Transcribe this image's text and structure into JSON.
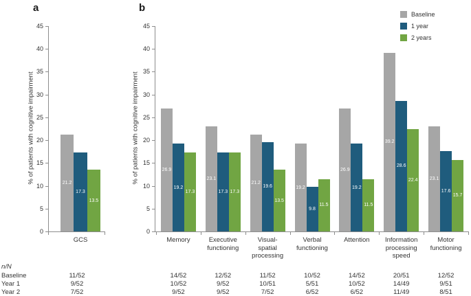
{
  "figure": {
    "panel_a_label": "a",
    "panel_b_label": "b",
    "y_axis_label": "% of patients with cognitive impairment"
  },
  "colors": {
    "baseline": "#a6a6a6",
    "year1": "#1f5c7d",
    "year2": "#71a543",
    "axis": "#8c8c8c",
    "bar_value_text": "#ffffff"
  },
  "legend": {
    "items": [
      {
        "label": "Baseline",
        "color": "#a6a6a6"
      },
      {
        "label": "1 year",
        "color": "#1f5c7d"
      },
      {
        "label": "2 years",
        "color": "#71a543"
      }
    ]
  },
  "chart_data": [
    {
      "panel": "a",
      "type": "bar",
      "title": "",
      "xlabel": "",
      "ylabel": "% of patients with cognitive impairment",
      "ylim": [
        0,
        45
      ],
      "ytick_step": 5,
      "grid": false,
      "categories": [
        "GCS"
      ],
      "series": [
        {
          "name": "Baseline",
          "color": "#a6a6a6",
          "values": [
            21.2
          ]
        },
        {
          "name": "1 year",
          "color": "#1f5c7d",
          "values": [
            17.3
          ]
        },
        {
          "name": "2 years",
          "color": "#71a543",
          "values": [
            13.5
          ]
        }
      ],
      "value_labels_inside_bars": true
    },
    {
      "panel": "b",
      "type": "bar",
      "title": "",
      "xlabel": "",
      "ylabel": "% of patients with cognitive impairment",
      "ylim": [
        0,
        45
      ],
      "ytick_step": 5,
      "grid": false,
      "legend_position": "top-right",
      "categories": [
        "Memory",
        "Executive\nfunctioning",
        "Visual-\nspatial\nprocessing",
        "Verbal\nfunctioning",
        "Attention",
        "Information\nprocessing\nspeed",
        "Motor\nfunctioning"
      ],
      "series": [
        {
          "name": "Baseline",
          "color": "#a6a6a6",
          "values": [
            26.9,
            23.1,
            21.2,
            19.2,
            26.9,
            39.2,
            23.1
          ]
        },
        {
          "name": "1 year",
          "color": "#1f5c7d",
          "values": [
            19.2,
            17.3,
            19.6,
            9.8,
            19.2,
            28.6,
            17.6
          ]
        },
        {
          "name": "2 years",
          "color": "#71a543",
          "values": [
            17.3,
            17.3,
            13.5,
            11.5,
            11.5,
            22.4,
            15.7
          ]
        }
      ],
      "value_labels_inside_bars": true
    }
  ],
  "table": {
    "header": "n/N",
    "row_labels": [
      "Baseline",
      "Year 1",
      "Year 2"
    ],
    "gcs_column": [
      "11/52",
      "9/52",
      "7/52"
    ],
    "b_columns": [
      [
        "14/52",
        "12/52",
        "11/52",
        "10/52",
        "14/52",
        "20/51",
        "12/52"
      ],
      [
        "10/52",
        "9/52",
        "10/51",
        "5/51",
        "10/52",
        "14/49",
        "9/51"
      ],
      [
        "9/52",
        "9/52",
        "7/52",
        "6/52",
        "6/52",
        "11/49",
        "8/51"
      ]
    ]
  }
}
